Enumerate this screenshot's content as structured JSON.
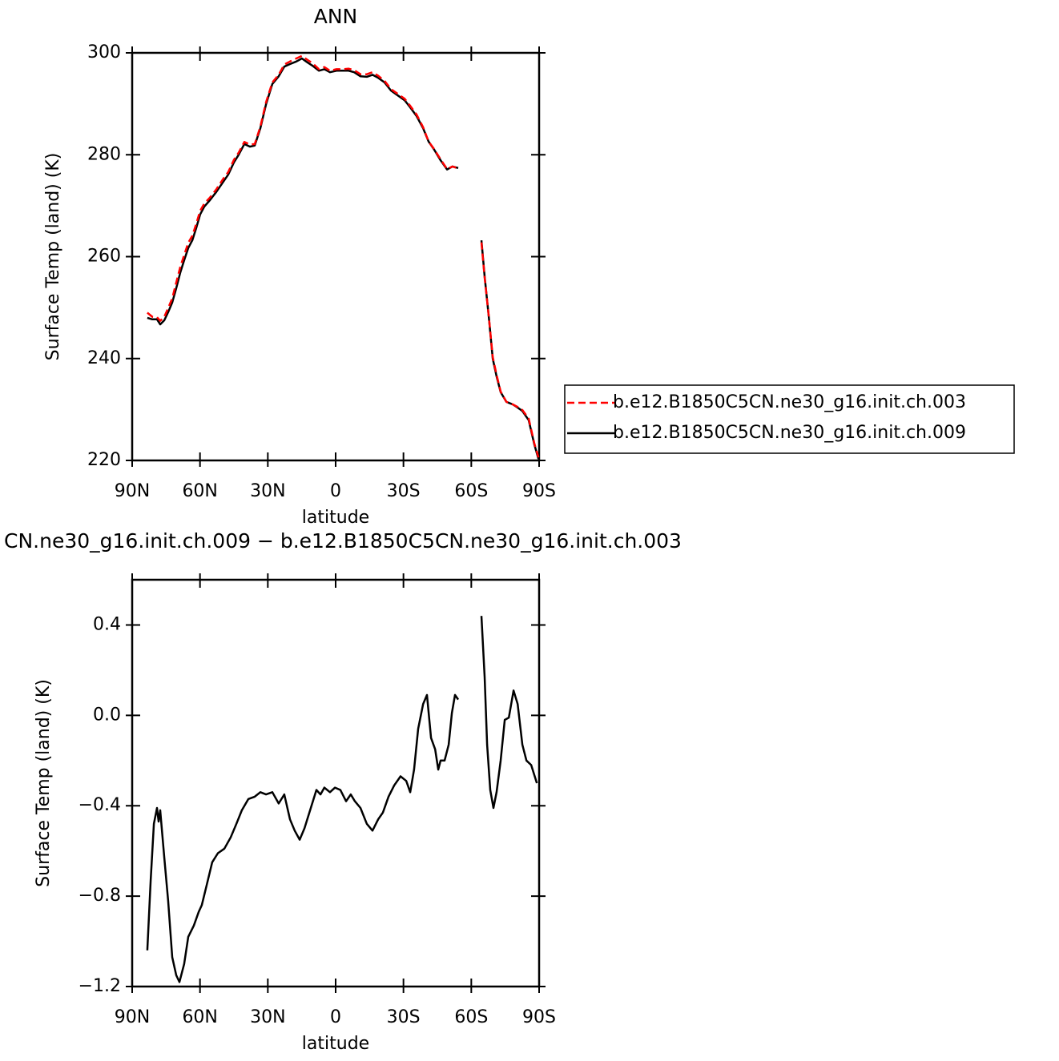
{
  "chart_data": [
    {
      "type": "line",
      "title": "ANN",
      "xlabel": "latitude",
      "ylabel": "Surface Temp (land) (K)",
      "xlim": [
        90,
        -90
      ],
      "ylim": [
        220,
        300
      ],
      "xticks": [
        {
          "value": 90,
          "label": "90N"
        },
        {
          "value": 60,
          "label": "60N"
        },
        {
          "value": 30,
          "label": "30N"
        },
        0,
        {
          "value": -30,
          "label": "30S"
        },
        {
          "value": -60,
          "label": "60S"
        },
        {
          "value": -90,
          "label": "90S"
        }
      ],
      "yticks": [
        220,
        240,
        260,
        280,
        300
      ],
      "legend": "right",
      "x": [
        83.3,
        81.1,
        79.0,
        77.6,
        75.8,
        74.1,
        72.3,
        70.5,
        68.7,
        67.0,
        65.2,
        63.4,
        61.7,
        59.9,
        58.1,
        55.6,
        52.8,
        50.0,
        47.5,
        45.0,
        42.9,
        40.4,
        37.9,
        35.8,
        33.3,
        30.8,
        28.0,
        25.2,
        22.7,
        20.2,
        17.4,
        14.9,
        12.4,
        10.3,
        7.4,
        5.0,
        2.5,
        -0.4,
        -3.2,
        -5.7,
        -8.2,
        -11.0,
        -13.8,
        -16.3,
        -18.8,
        -21.6,
        -24.5,
        -27.0,
        -30.5,
        -33.0,
        -35.8,
        -38.7,
        -41.1,
        -43.6,
        -46.4,
        -49.3,
        -51.7,
        -54.2,
        -59.0,
        -64.5,
        -65.9,
        -67.7,
        -69.5,
        -71.2,
        -73.0,
        -75.5,
        -78.3,
        -80.1,
        -82.6,
        -85.4,
        -87.9,
        -89.7
      ],
      "series": [
        {
          "name": "b.e12.B1850C5CN.ne30_g16.init.ch.003",
          "color": "#ff0000",
          "dash": true,
          "values": [
            249.0,
            248.2,
            248.1,
            247.4,
            248.2,
            249.9,
            251.8,
            254.9,
            258.0,
            260.3,
            262.7,
            264.1,
            266.4,
            269.0,
            270.4,
            271.6,
            273.2,
            275.1,
            276.6,
            279.0,
            280.4,
            282.5,
            282.0,
            282.1,
            285.5,
            290.3,
            294.2,
            295.7,
            297.7,
            298.3,
            298.9,
            299.4,
            298.6,
            298.0,
            296.8,
            297.2,
            296.5,
            296.8,
            296.8,
            296.9,
            296.6,
            295.8,
            295.8,
            296.2,
            295.5,
            294.5,
            292.9,
            292.1,
            291.0,
            289.6,
            287.9,
            285.4,
            282.6,
            281.1,
            279.1,
            277.2,
            277.7,
            277.3,
            null,
            262.8,
            255.9,
            248.4,
            240.3,
            236.8,
            233.5,
            231.5,
            231.0,
            230.6,
            229.9,
            228.2,
            223.3,
            220.6
          ]
        },
        {
          "name": "b.e12.B1850C5CN.ne30_g16.init.ch.009",
          "color": "#000000",
          "dash": false,
          "values": [
            248.0,
            247.7,
            247.7,
            246.7,
            247.5,
            249.1,
            251.0,
            253.8,
            256.9,
            259.3,
            261.7,
            263.2,
            265.6,
            268.3,
            269.8,
            271.1,
            272.7,
            274.5,
            276.1,
            278.5,
            280.0,
            282.1,
            281.6,
            281.8,
            285.2,
            289.9,
            293.9,
            295.4,
            297.3,
            297.8,
            298.3,
            298.9,
            298.1,
            297.5,
            296.5,
            296.8,
            296.2,
            296.5,
            296.5,
            296.5,
            296.2,
            295.4,
            295.3,
            295.7,
            295.1,
            294.2,
            292.6,
            291.8,
            290.7,
            289.3,
            287.6,
            285.2,
            282.6,
            281.0,
            278.9,
            277.1,
            277.7,
            277.4,
            null,
            263.2,
            256.1,
            248.3,
            240.0,
            236.5,
            233.4,
            231.5,
            231.0,
            230.5,
            229.7,
            227.9,
            223.1,
            220.3
          ]
        }
      ]
    },
    {
      "type": "line",
      "title": "CN.ne30_g16.init.ch.009 − b.e12.B1850C5CN.ne30_g16.init.ch.003",
      "xlabel": "latitude",
      "ylabel": "Surface Temp (land) (K)",
      "xlim": [
        90,
        -90
      ],
      "ylim": [
        -1.2,
        0.6
      ],
      "xticks": [
        {
          "value": 90,
          "label": "90N"
        },
        {
          "value": 60,
          "label": "60N"
        },
        {
          "value": 30,
          "label": "30N"
        },
        0,
        {
          "value": -30,
          "label": "30S"
        },
        {
          "value": -60,
          "label": "60S"
        },
        {
          "value": -90,
          "label": "90S"
        }
      ],
      "yticks": [
        {
          "value": -1.2,
          "label": "−1.2"
        },
        {
          "value": -0.8,
          "label": "−0.8"
        },
        {
          "value": -0.4,
          "label": "−0.4"
        },
        {
          "value": 0,
          "label": "0.0"
        },
        0.4
      ],
      "x": [
        83.3,
        81.8,
        80.4,
        79.0,
        78.3,
        77.6,
        75.8,
        74.1,
        72.3,
        70.5,
        69.1,
        67.0,
        65.2,
        62.7,
        60.6,
        59.2,
        57.0,
        54.6,
        52.1,
        49.2,
        46.4,
        43.9,
        41.5,
        38.6,
        35.8,
        33.3,
        30.8,
        28.0,
        25.2,
        22.7,
        20.2,
        18.1,
        15.9,
        13.8,
        11.0,
        8.5,
        6.7,
        5.0,
        2.5,
        0.3,
        -2.1,
        -4.6,
        -6.7,
        -8.5,
        -11.0,
        -13.8,
        -16.3,
        -18.8,
        -20.9,
        -23.4,
        -25.9,
        -28.7,
        -31.2,
        -33.0,
        -34.7,
        -36.5,
        -38.7,
        -40.4,
        -42.2,
        -44.0,
        -45.4,
        -46.4,
        -48.2,
        -50.0,
        -51.4,
        -52.8,
        -54.2,
        -59.0,
        -64.5,
        -65.9,
        -67.0,
        -68.4,
        -69.8,
        -71.2,
        -73.0,
        -74.8,
        -76.6,
        -78.7,
        -80.5,
        -82.6,
        -84.4,
        -86.5,
        -89.0
      ],
      "color": "#000000",
      "values": [
        -1.04,
        -0.73,
        -0.48,
        -0.41,
        -0.47,
        -0.42,
        -0.63,
        -0.82,
        -1.07,
        -1.15,
        -1.18,
        -1.1,
        -0.98,
        -0.93,
        -0.87,
        -0.84,
        -0.75,
        -0.65,
        -0.61,
        -0.59,
        -0.54,
        -0.48,
        -0.42,
        -0.37,
        -0.36,
        -0.34,
        -0.35,
        -0.34,
        -0.39,
        -0.35,
        -0.46,
        -0.51,
        -0.55,
        -0.5,
        -0.41,
        -0.33,
        -0.35,
        -0.32,
        -0.34,
        -0.32,
        -0.33,
        -0.38,
        -0.35,
        -0.38,
        -0.41,
        -0.48,
        -0.51,
        -0.46,
        -0.43,
        -0.36,
        -0.31,
        -0.27,
        -0.29,
        -0.34,
        -0.24,
        -0.06,
        0.05,
        0.09,
        -0.1,
        -0.15,
        -0.24,
        -0.2,
        -0.2,
        -0.13,
        0.01,
        0.09,
        0.07,
        null,
        0.44,
        0.17,
        -0.13,
        -0.33,
        -0.41,
        -0.34,
        -0.2,
        -0.02,
        -0.01,
        0.11,
        0.05,
        -0.13,
        -0.2,
        -0.22,
        -0.3
      ]
    }
  ]
}
